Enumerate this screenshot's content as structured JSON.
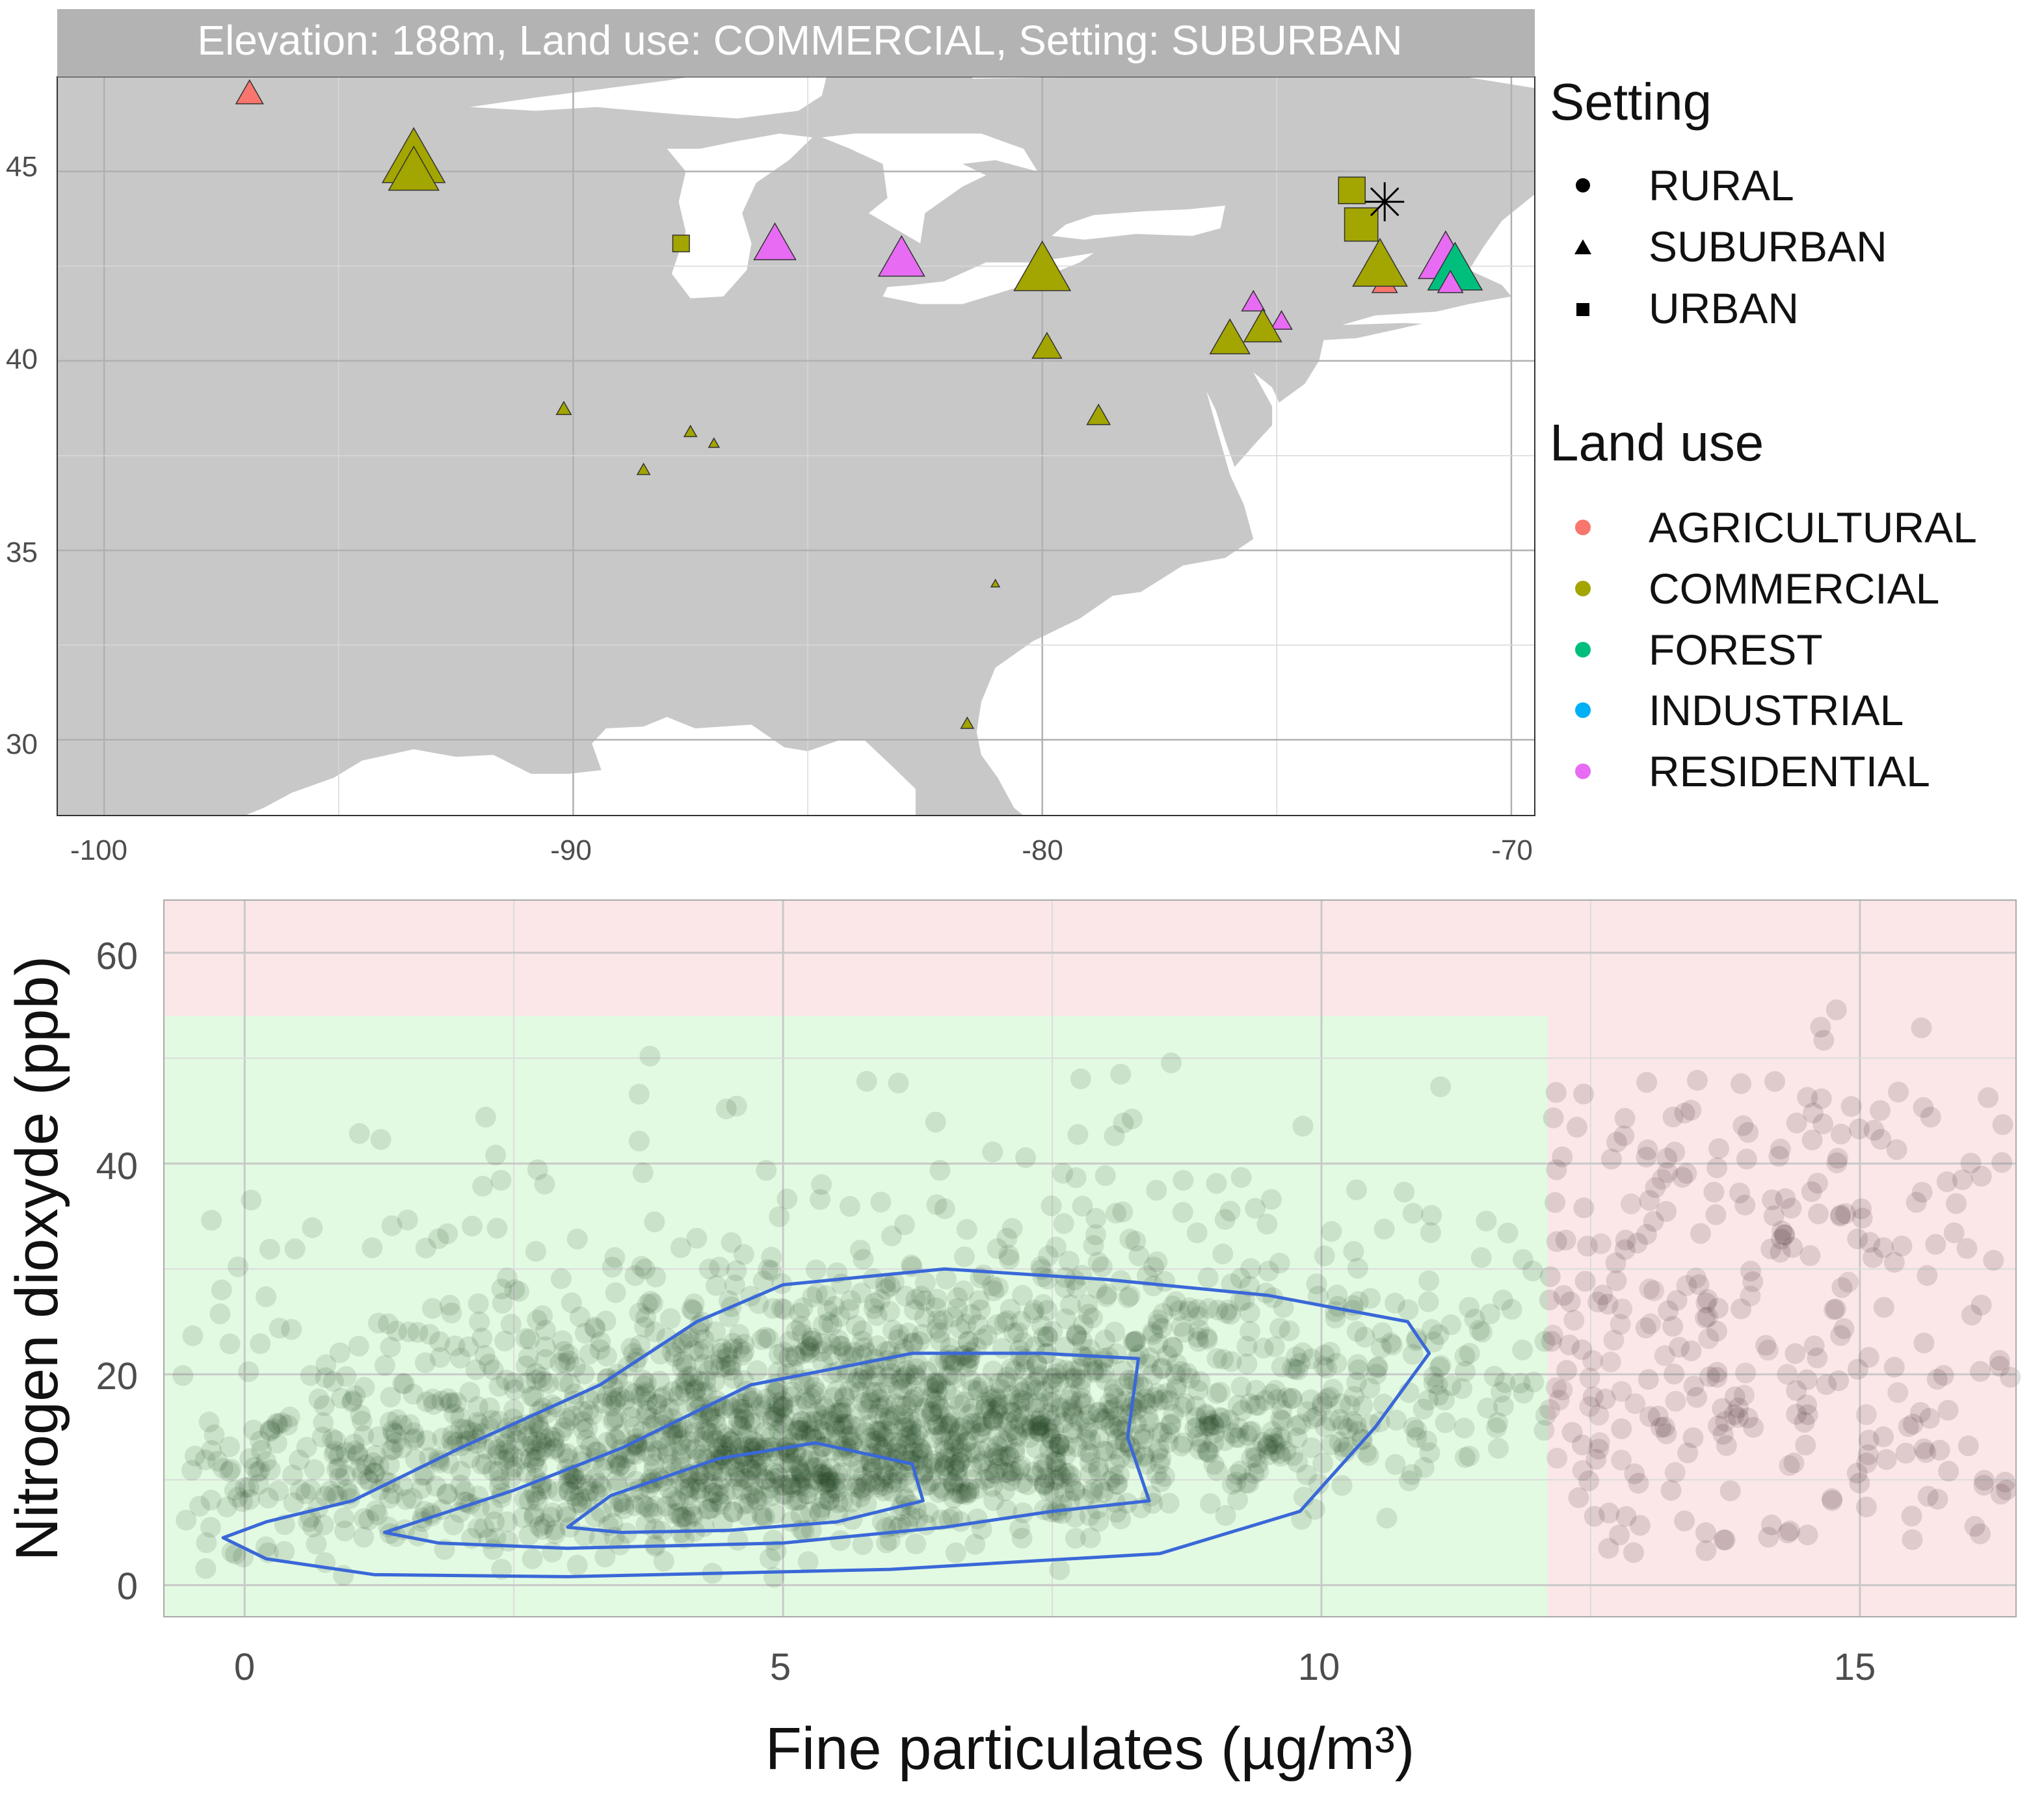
{
  "map_panel": {
    "strip_title": "Elevation: 188m, Land use: COMMERCIAL, Setting: SUBURBAN",
    "x_ticks": [
      "-100",
      "-90",
      "-80",
      "-70"
    ],
    "y_ticks": [
      "30",
      "35",
      "40",
      "45"
    ]
  },
  "legend": {
    "setting_title": "Setting",
    "setting_items": [
      "RURAL",
      "SUBURBAN",
      "URBAN"
    ],
    "landuse_title": "Land use",
    "landuse_items": [
      "AGRICULTURAL",
      "COMMERCIAL",
      "FOREST",
      "INDUSTRIAL",
      "RESIDENTIAL"
    ]
  },
  "scatter_panel": {
    "xlabel": "Fine particulates (µg/m³)",
    "ylabel": "Nitrogen dioxyde (ppb)",
    "x_ticks": [
      "0",
      "5",
      "10",
      "15"
    ],
    "y_ticks": [
      "0",
      "20",
      "40",
      "60"
    ]
  },
  "chart_data": [
    {
      "type": "scatter",
      "title": "Elevation: 188m, Land use: COMMERCIAL, Setting: SUBURBAN",
      "xlabel": "",
      "ylabel": "",
      "xlim": [
        -101,
        -69.5
      ],
      "ylim": [
        28,
        47.5
      ],
      "grid": true,
      "legend_position": "right",
      "colors": {
        "AGRICULTURAL": "#f8766d",
        "COMMERCIAL": "#a3a500",
        "FOREST": "#00bf7d",
        "INDUSTRIAL": "#00b0f6",
        "RESIDENTIAL": "#e76bf3",
        "land": "#c8c8c8",
        "panel": "#ffffff",
        "strip": "#b3b3b3"
      },
      "points": [
        {
          "lon": -96.9,
          "lat": 47.0,
          "land_use": "AGRICULTURAL",
          "setting": "SUBURBAN",
          "size": 1.3
        },
        {
          "lon": -93.4,
          "lat": 45.2,
          "land_use": "COMMERCIAL",
          "setting": "SUBURBAN",
          "size": 3.0
        },
        {
          "lon": -93.4,
          "lat": 44.9,
          "land_use": "COMMERCIAL",
          "setting": "SUBURBAN",
          "size": 2.4
        },
        {
          "lon": -87.7,
          "lat": 43.1,
          "land_use": "COMMERCIAL",
          "setting": "URBAN",
          "size": 1.0
        },
        {
          "lon": -85.7,
          "lat": 43.0,
          "land_use": "RESIDENTIAL",
          "setting": "SUBURBAN",
          "size": 2.0
        },
        {
          "lon": -83.0,
          "lat": 42.6,
          "land_use": "RESIDENTIAL",
          "setting": "SUBURBAN",
          "size": 2.2
        },
        {
          "lon": -80.0,
          "lat": 42.3,
          "land_use": "COMMERCIAL",
          "setting": "SUBURBAN",
          "size": 2.7
        },
        {
          "lon": -79.9,
          "lat": 40.3,
          "land_use": "COMMERCIAL",
          "setting": "SUBURBAN",
          "size": 1.4
        },
        {
          "lon": -78.8,
          "lat": 38.5,
          "land_use": "COMMERCIAL",
          "setting": "SUBURBAN",
          "size": 1.1
        },
        {
          "lon": -90.2,
          "lat": 38.7,
          "land_use": "COMMERCIAL",
          "setting": "SUBURBAN",
          "size": 0.7
        },
        {
          "lon": -87.5,
          "lat": 38.1,
          "land_use": "COMMERCIAL",
          "setting": "SUBURBAN",
          "size": 0.6
        },
        {
          "lon": -88.5,
          "lat": 37.1,
          "land_use": "COMMERCIAL",
          "setting": "SUBURBAN",
          "size": 0.6
        },
        {
          "lon": -87.0,
          "lat": 37.8,
          "land_use": "COMMERCIAL",
          "setting": "SUBURBAN",
          "size": 0.5
        },
        {
          "lon": -81.0,
          "lat": 34.1,
          "land_use": "COMMERCIAL",
          "setting": "SUBURBAN",
          "size": 0.4
        },
        {
          "lon": -81.6,
          "lat": 30.4,
          "land_use": "COMMERCIAL",
          "setting": "SUBURBAN",
          "size": 0.6
        },
        {
          "lon": -75.5,
          "lat": 41.5,
          "land_use": "RESIDENTIAL",
          "setting": "SUBURBAN",
          "size": 1.1
        },
        {
          "lon": -74.9,
          "lat": 41.0,
          "land_use": "RESIDENTIAL",
          "setting": "SUBURBAN",
          "size": 1.0
        },
        {
          "lon": -76.0,
          "lat": 40.5,
          "land_use": "COMMERCIAL",
          "setting": "SUBURBAN",
          "size": 1.9
        },
        {
          "lon": -75.3,
          "lat": 40.8,
          "land_use": "COMMERCIAL",
          "setting": "SUBURBAN",
          "size": 1.8
        },
        {
          "lon": -73.4,
          "lat": 44.5,
          "land_use": "COMMERCIAL",
          "setting": "URBAN",
          "size": 1.6
        },
        {
          "lon": -73.2,
          "lat": 43.6,
          "land_use": "COMMERCIAL",
          "setting": "URBAN",
          "size": 2.0
        },
        {
          "lon": -72.7,
          "lat": 42.0,
          "land_use": "AGRICULTURAL",
          "setting": "SUBURBAN",
          "size": 1.2
        },
        {
          "lon": -72.8,
          "lat": 42.4,
          "land_use": "COMMERCIAL",
          "setting": "SUBURBAN",
          "size": 2.6
        },
        {
          "lon": -71.4,
          "lat": 42.6,
          "land_use": "RESIDENTIAL",
          "setting": "SUBURBAN",
          "size": 2.6
        },
        {
          "lon": -71.2,
          "lat": 42.3,
          "land_use": "FOREST",
          "setting": "SUBURBAN",
          "size": 2.6
        },
        {
          "lon": -71.3,
          "lat": 42.0,
          "land_use": "RESIDENTIAL",
          "setting": "SUBURBAN",
          "size": 1.2
        }
      ],
      "selected_station": {
        "lon": -72.7,
        "lat": 44.2,
        "marker": "asterisk"
      }
    },
    {
      "type": "scatter",
      "title": "",
      "xlabel": "Fine particulates (µg/m³)",
      "ylabel": "Nitrogen dioxyde (ppb)",
      "xlim": [
        -0.75,
        16.45
      ],
      "ylim": [
        -3,
        65
      ],
      "grid": true,
      "thresholds": {
        "pm25": 12.1,
        "no2": 54
      },
      "colors": {
        "safe_zone": "#e2fae2",
        "danger_zone": "#fbe7e8",
        "points_safe": "#1b3a1b",
        "points_danger": "#3a1b24",
        "contour": "#3a68d8"
      },
      "contours": [
        {
          "level": "outer",
          "points": [
            [
              -0.2,
              4.5
            ],
            [
              0.2,
              6
            ],
            [
              1.0,
              8
            ],
            [
              2.0,
              13
            ],
            [
              3.3,
              19
            ],
            [
              4.2,
              25
            ],
            [
              5.0,
              28.5
            ],
            [
              6.5,
              30
            ],
            [
              8.0,
              29
            ],
            [
              9.5,
              27.5
            ],
            [
              10.8,
              25
            ],
            [
              11.0,
              22
            ],
            [
              10.5,
              15
            ],
            [
              9.8,
              7
            ],
            [
              8.5,
              3
            ],
            [
              6.0,
              1.5
            ],
            [
              3.0,
              0.8
            ],
            [
              1.2,
              1
            ],
            [
              0.2,
              2.5
            ]
          ]
        },
        {
          "level": "middle",
          "points": [
            [
              1.3,
              5
            ],
            [
              2.5,
              9
            ],
            [
              3.5,
              13
            ],
            [
              4.7,
              19
            ],
            [
              6.2,
              22
            ],
            [
              7.4,
              22
            ],
            [
              8.3,
              21.5
            ],
            [
              8.2,
              14
            ],
            [
              8.4,
              8
            ],
            [
              7.5,
              7
            ],
            [
              6.5,
              5.5
            ],
            [
              5.0,
              4
            ],
            [
              3.0,
              3.5
            ],
            [
              1.8,
              4
            ]
          ]
        },
        {
          "level": "inner",
          "points": [
            [
              3.0,
              5.5
            ],
            [
              3.4,
              8.5
            ],
            [
              4.4,
              12
            ],
            [
              5.3,
              13.5
            ],
            [
              6.2,
              11.5
            ],
            [
              6.3,
              8
            ],
            [
              5.5,
              6
            ],
            [
              4.5,
              5.2
            ],
            [
              3.5,
              5
            ]
          ]
        }
      ]
    }
  ]
}
